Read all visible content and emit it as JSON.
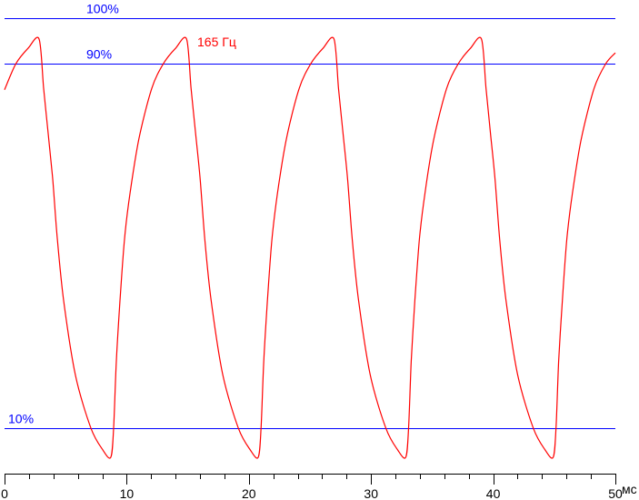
{
  "chart_data": {
    "type": "line",
    "title": "",
    "xlabel": "мс",
    "ylabel": "",
    "xlim": [
      0,
      50
    ],
    "ylim": [
      0,
      100
    ],
    "x_ticks": [
      0,
      10,
      20,
      30,
      40,
      50
    ],
    "x_minor_step": 2,
    "grid": false,
    "reference_lines": [
      {
        "label": "100%",
        "value": 100
      },
      {
        "label": "90%",
        "value": 90
      },
      {
        "label": "10%",
        "value": 10
      }
    ],
    "annotation": "165 Гц",
    "colors": {
      "series": "#ff0000",
      "reference": "#0000ff",
      "axis": "#000000"
    },
    "series": [
      {
        "points": [
          [
            0,
            84.3
          ],
          [
            0.93,
            90
          ],
          [
            1.93,
            93.4
          ],
          [
            2.83,
            95.4
          ],
          [
            3.2,
            84.6
          ],
          [
            3.57,
            74.7
          ],
          [
            3.94,
            64.7
          ],
          [
            4.32,
            51.5
          ],
          [
            4.84,
            38
          ],
          [
            5.8,
            21.6
          ],
          [
            7.07,
            10
          ],
          [
            8.04,
            5.2
          ],
          [
            8.7,
            3.6
          ],
          [
            8.93,
            10
          ],
          [
            9.15,
            24.7
          ],
          [
            9.45,
            38
          ],
          [
            9.82,
            51.5
          ],
          [
            10.27,
            61.5
          ],
          [
            11.0,
            73.5
          ],
          [
            12.05,
            84.6
          ],
          [
            13.0,
            90
          ],
          [
            14.0,
            93.4
          ],
          [
            14.9,
            95.4
          ],
          [
            15.27,
            84.6
          ],
          [
            15.64,
            74.7
          ],
          [
            16.01,
            64.7
          ],
          [
            16.39,
            51.5
          ],
          [
            16.91,
            38
          ],
          [
            17.87,
            21.6
          ],
          [
            19.14,
            10
          ],
          [
            20.11,
            5.2
          ],
          [
            20.77,
            3.6
          ],
          [
            21.0,
            10
          ],
          [
            21.22,
            24.7
          ],
          [
            21.52,
            38
          ],
          [
            21.89,
            51.5
          ],
          [
            22.34,
            61.5
          ],
          [
            23.07,
            73.5
          ],
          [
            24.12,
            84.6
          ],
          [
            25.07,
            90
          ],
          [
            26.07,
            93.4
          ],
          [
            26.97,
            95.4
          ],
          [
            27.34,
            84.6
          ],
          [
            27.71,
            74.7
          ],
          [
            28.08,
            64.7
          ],
          [
            28.46,
            51.5
          ],
          [
            28.98,
            38
          ],
          [
            29.94,
            21.6
          ],
          [
            31.21,
            10
          ],
          [
            32.18,
            5.2
          ],
          [
            32.84,
            3.6
          ],
          [
            33.07,
            10
          ],
          [
            33.29,
            24.7
          ],
          [
            33.59,
            38
          ],
          [
            33.96,
            51.5
          ],
          [
            34.41,
            61.5
          ],
          [
            35.14,
            73.5
          ],
          [
            36.19,
            84.6
          ],
          [
            37.14,
            90
          ],
          [
            38.14,
            93.4
          ],
          [
            39.04,
            95.4
          ],
          [
            39.41,
            84.6
          ],
          [
            39.78,
            74.7
          ],
          [
            40.15,
            64.7
          ],
          [
            40.53,
            51.5
          ],
          [
            41.05,
            38
          ],
          [
            42.01,
            21.6
          ],
          [
            43.28,
            10
          ],
          [
            44.25,
            5.2
          ],
          [
            44.91,
            3.6
          ],
          [
            45.14,
            10
          ],
          [
            45.36,
            24.7
          ],
          [
            45.66,
            38
          ],
          [
            46.03,
            51.5
          ],
          [
            46.48,
            61.5
          ],
          [
            47.21,
            73.5
          ],
          [
            48.26,
            84.6
          ],
          [
            49.21,
            90
          ],
          [
            50,
            92.4
          ]
        ]
      }
    ]
  }
}
